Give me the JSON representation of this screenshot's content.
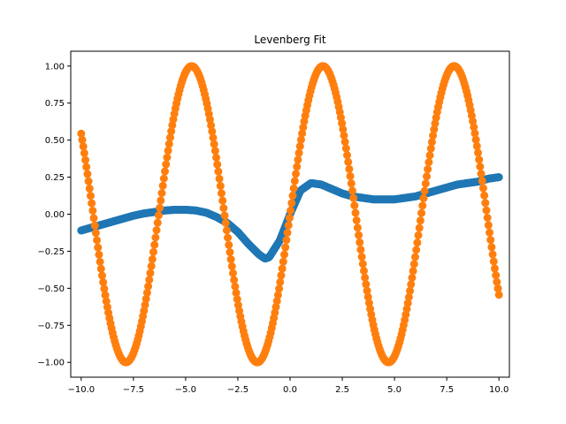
{
  "chart_data": {
    "type": "scatter",
    "title": "Levenberg Fit",
    "xlabel": "",
    "ylabel": "",
    "xlim": [
      -10.5,
      10.5
    ],
    "ylim": [
      -1.1,
      1.1
    ],
    "x_ticks": [
      -10.0,
      -7.5,
      -5.0,
      -2.5,
      0.0,
      2.5,
      5.0,
      7.5,
      10.0
    ],
    "x_tick_labels": [
      "−10.0",
      "−7.5",
      "−5.0",
      "−2.5",
      "0.0",
      "2.5",
      "5.0",
      "7.5",
      "10.0"
    ],
    "y_ticks": [
      -1.0,
      -0.75,
      -0.5,
      -0.25,
      0.0,
      0.25,
      0.5,
      0.75,
      1.0
    ],
    "y_tick_labels": [
      "−1.00",
      "−0.75",
      "−0.50",
      "−0.25",
      "0.00",
      "0.25",
      "0.50",
      "0.75",
      "1.00"
    ],
    "grid": false,
    "series": [
      {
        "color": "#1f77b4",
        "x": [
          -10,
          -9.5,
          -9,
          -8.5,
          -8,
          -7.5,
          -7,
          -6.5,
          -6,
          -5.5,
          -5,
          -4.5,
          -4,
          -3.5,
          -3,
          -2.5,
          -2,
          -1.5,
          -1.2,
          -1,
          -0.5,
          0,
          0.5,
          1,
          1.5,
          2,
          2.5,
          3,
          3.5,
          4,
          4.5,
          5,
          5.5,
          6,
          6.5,
          7,
          7.5,
          8,
          8.5,
          9,
          9.5,
          10
        ],
        "y": [
          -0.11,
          -0.09,
          -0.07,
          -0.05,
          -0.03,
          -0.01,
          0.005,
          0.015,
          0.025,
          0.03,
          0.03,
          0.025,
          0.01,
          -0.02,
          -0.06,
          -0.12,
          -0.2,
          -0.27,
          -0.3,
          -0.29,
          -0.18,
          0.0,
          0.16,
          0.21,
          0.2,
          0.17,
          0.14,
          0.12,
          0.11,
          0.1,
          0.1,
          0.1,
          0.11,
          0.12,
          0.14,
          0.16,
          0.18,
          0.2,
          0.21,
          0.22,
          0.24,
          0.25
        ]
      },
      {
        "color": "#ff7f0e",
        "function": "sin",
        "x_start": -10,
        "x_end": 10,
        "point_count": 400
      }
    ]
  }
}
